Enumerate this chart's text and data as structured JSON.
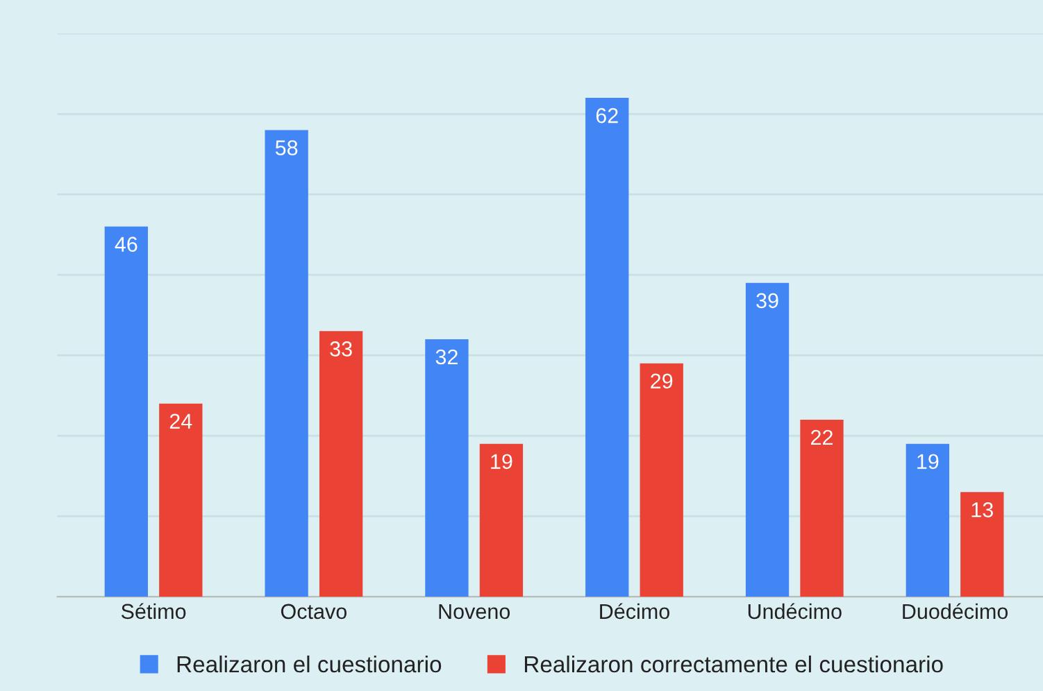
{
  "chart_data": {
    "type": "bar",
    "categories": [
      "Sétimo",
      "Octavo",
      "Noveno",
      "Décimo",
      "Undécimo",
      "Duodécimo"
    ],
    "series": [
      {
        "name": "Realizaron el cuestionario",
        "color": "#4285f4",
        "values": [
          46,
          58,
          32,
          62,
          39,
          19
        ]
      },
      {
        "name": "Realizaron correctamente el cuestionario",
        "color": "#ea4335",
        "values": [
          24,
          33,
          19,
          29,
          22,
          13
        ]
      }
    ],
    "ylim": [
      0,
      70
    ],
    "yticks": [
      {
        "value": 0,
        "label": null
      },
      {
        "value": 10,
        "label": null
      },
      {
        "value": 20,
        "label": null
      },
      {
        "value": 30,
        "label": null
      },
      {
        "value": 40,
        "label": null
      },
      {
        "value": 50,
        "label": null
      },
      {
        "value": 60,
        "label": null
      },
      {
        "value": 70,
        "label": null
      }
    ],
    "tick_labels": "x",
    "grid": "y",
    "legend": "bottom",
    "data_labels": true
  }
}
